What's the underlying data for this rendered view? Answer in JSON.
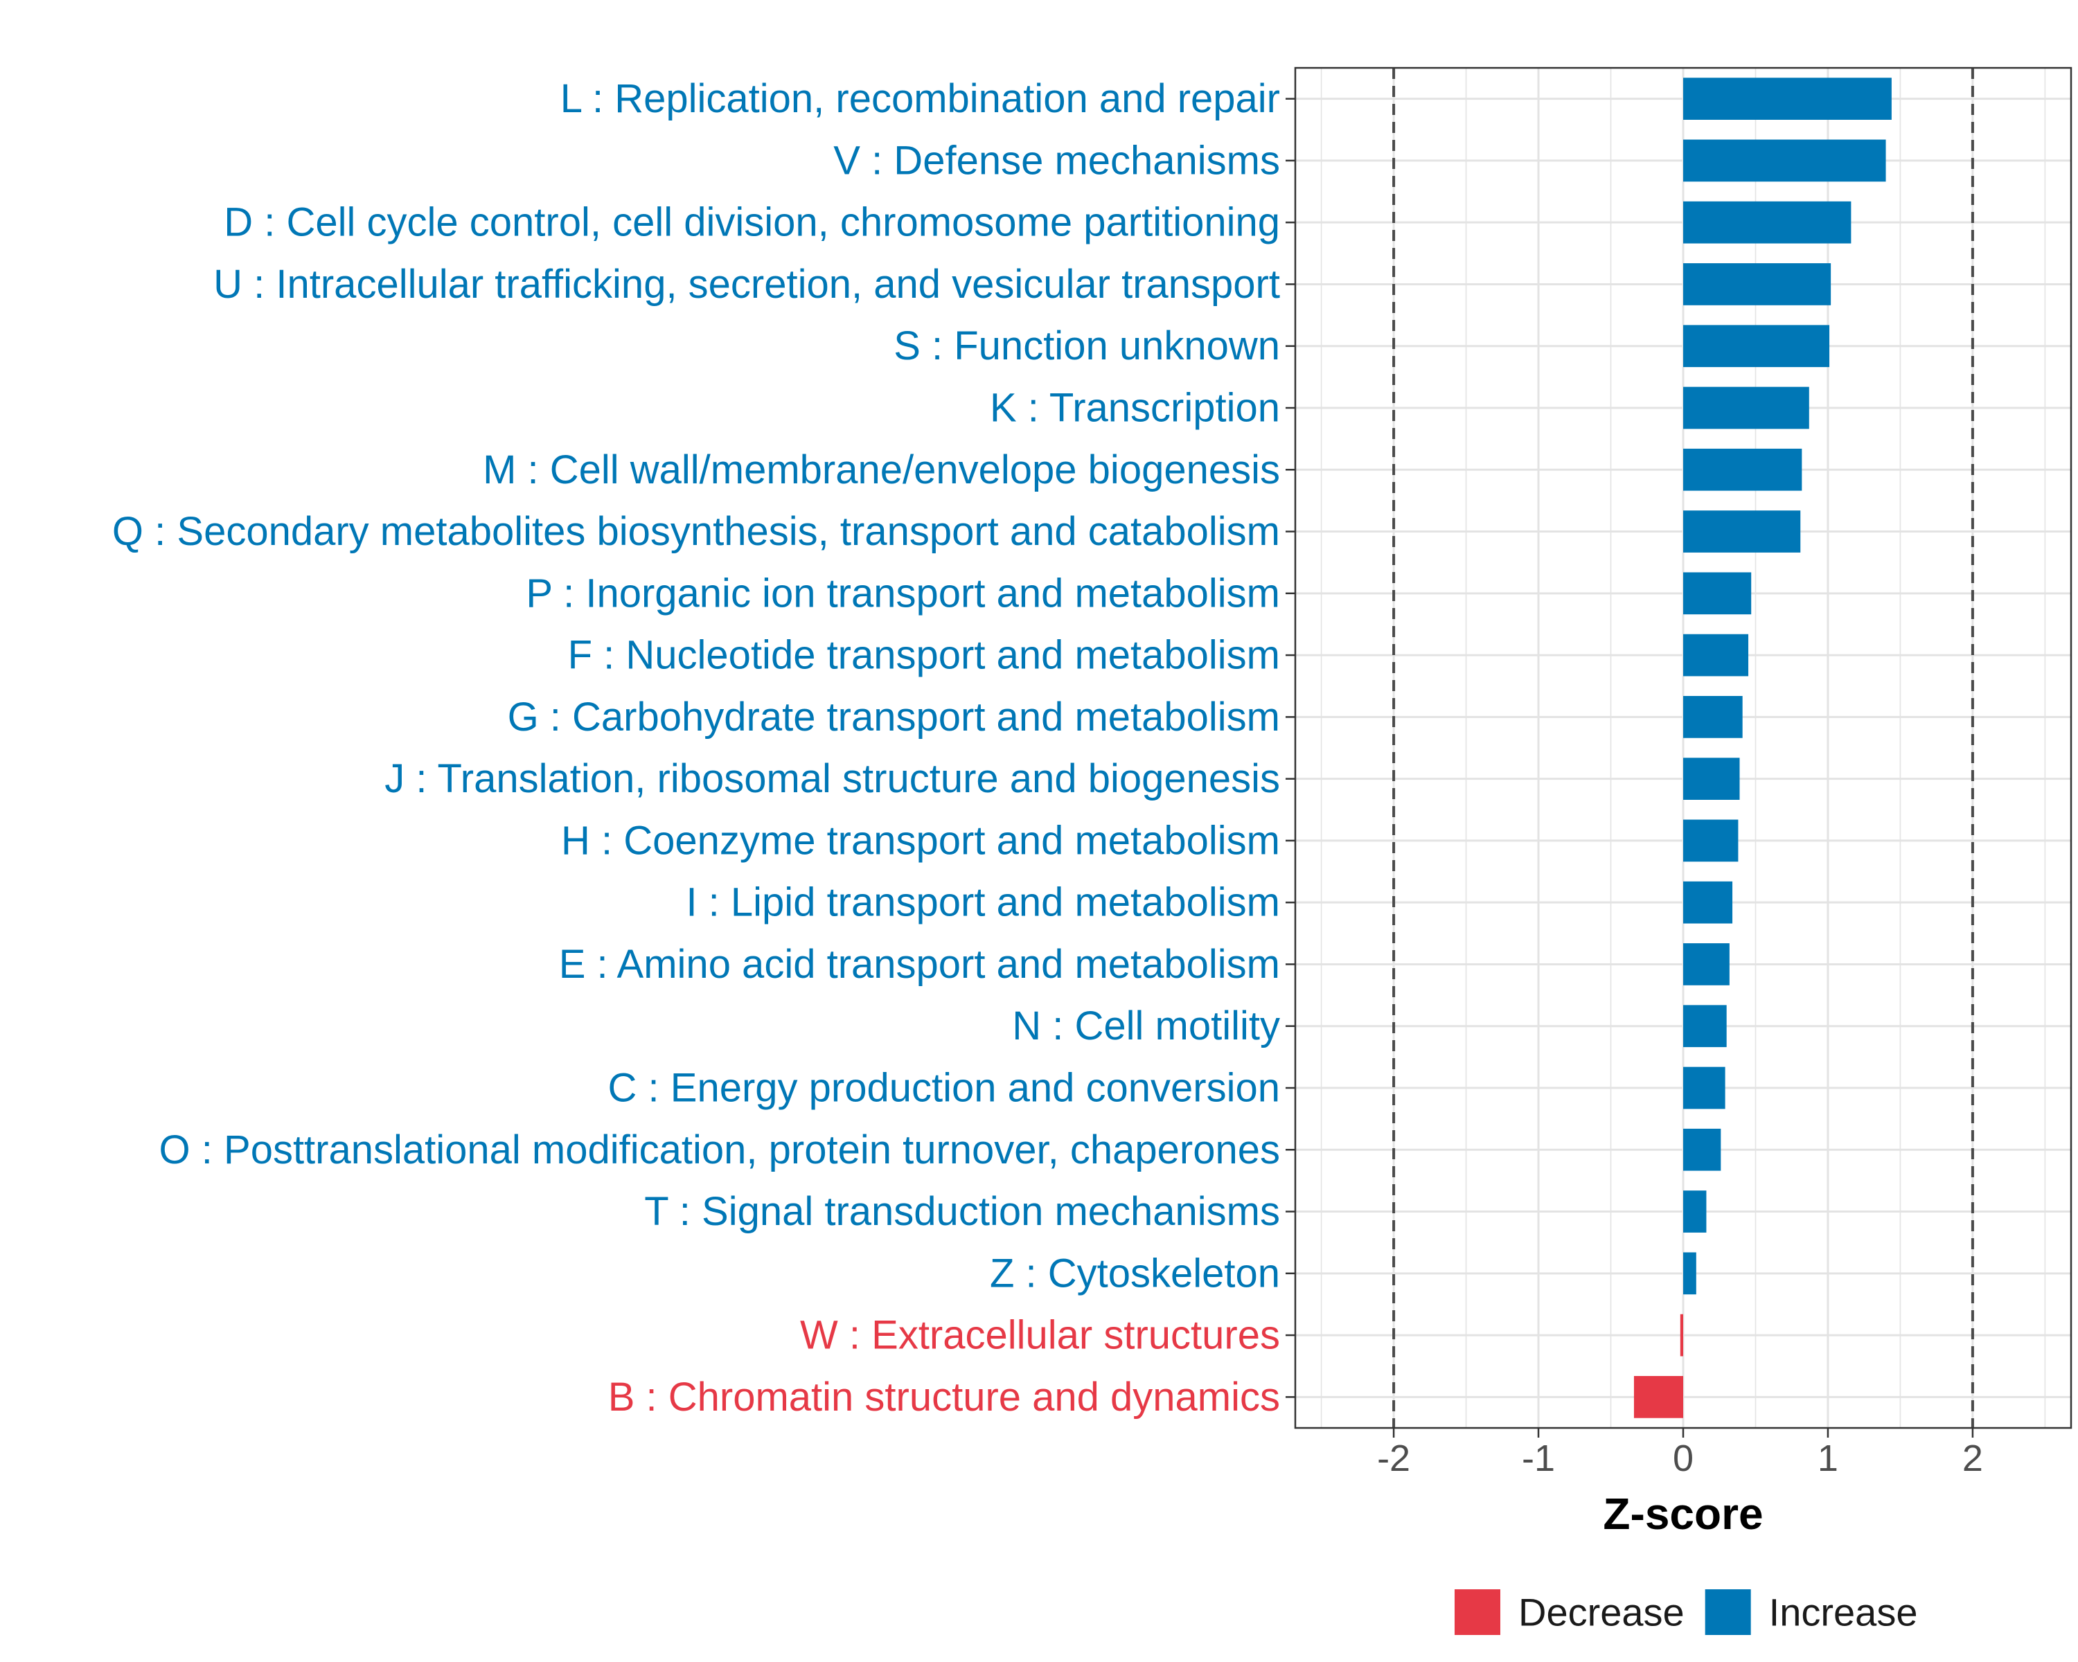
{
  "chart_data": {
    "type": "bar",
    "orientation": "horizontal",
    "title": "",
    "xlabel": "Z-score",
    "ylabel": "",
    "xlim": [
      -2.68,
      2.68
    ],
    "xticks": [
      -2,
      -1,
      0,
      1,
      2
    ],
    "xtick_labels": [
      "-2",
      "-1",
      "0",
      "1",
      "2"
    ],
    "reference_lines": [
      -2,
      2
    ],
    "grid": true,
    "colors": {
      "Decrease": "#e63946",
      "Increase": "#0077b6"
    },
    "categories": [
      {
        "label": "L : Replication, recombination and repair",
        "value": 1.44,
        "direction": "Increase"
      },
      {
        "label": "V : Defense mechanisms",
        "value": 1.4,
        "direction": "Increase"
      },
      {
        "label": "D : Cell cycle control, cell division, chromosome partitioning",
        "value": 1.16,
        "direction": "Increase"
      },
      {
        "label": "U : Intracellular trafficking, secretion, and vesicular transport",
        "value": 1.02,
        "direction": "Increase"
      },
      {
        "label": "S : Function unknown",
        "value": 1.01,
        "direction": "Increase"
      },
      {
        "label": "K : Transcription",
        "value": 0.87,
        "direction": "Increase"
      },
      {
        "label": "M : Cell wall/membrane/envelope biogenesis",
        "value": 0.82,
        "direction": "Increase"
      },
      {
        "label": "Q : Secondary metabolites biosynthesis, transport and catabolism",
        "value": 0.81,
        "direction": "Increase"
      },
      {
        "label": "P : Inorganic ion transport and metabolism",
        "value": 0.47,
        "direction": "Increase"
      },
      {
        "label": "F : Nucleotide transport and metabolism",
        "value": 0.45,
        "direction": "Increase"
      },
      {
        "label": "G : Carbohydrate transport and metabolism",
        "value": 0.41,
        "direction": "Increase"
      },
      {
        "label": "J : Translation, ribosomal structure and biogenesis",
        "value": 0.39,
        "direction": "Increase"
      },
      {
        "label": "H : Coenzyme transport and metabolism",
        "value": 0.38,
        "direction": "Increase"
      },
      {
        "label": "I : Lipid transport and metabolism",
        "value": 0.34,
        "direction": "Increase"
      },
      {
        "label": "E : Amino acid transport and metabolism",
        "value": 0.32,
        "direction": "Increase"
      },
      {
        "label": "N : Cell motility",
        "value": 0.3,
        "direction": "Increase"
      },
      {
        "label": "C : Energy production and conversion",
        "value": 0.29,
        "direction": "Increase"
      },
      {
        "label": "O : Posttranslational modification, protein turnover, chaperones",
        "value": 0.26,
        "direction": "Increase"
      },
      {
        "label": "T : Signal transduction mechanisms",
        "value": 0.16,
        "direction": "Increase"
      },
      {
        "label": "Z : Cytoskeleton",
        "value": 0.09,
        "direction": "Increase"
      },
      {
        "label": "W : Extracellular structures",
        "value": -0.02,
        "direction": "Decrease"
      },
      {
        "label": "B : Chromatin structure and dynamics",
        "value": -0.34,
        "direction": "Decrease"
      }
    ],
    "legend": {
      "position": "bottom",
      "entries": [
        {
          "label": "Decrease",
          "color": "#e63946"
        },
        {
          "label": "Increase",
          "color": "#0077b6"
        }
      ]
    }
  }
}
